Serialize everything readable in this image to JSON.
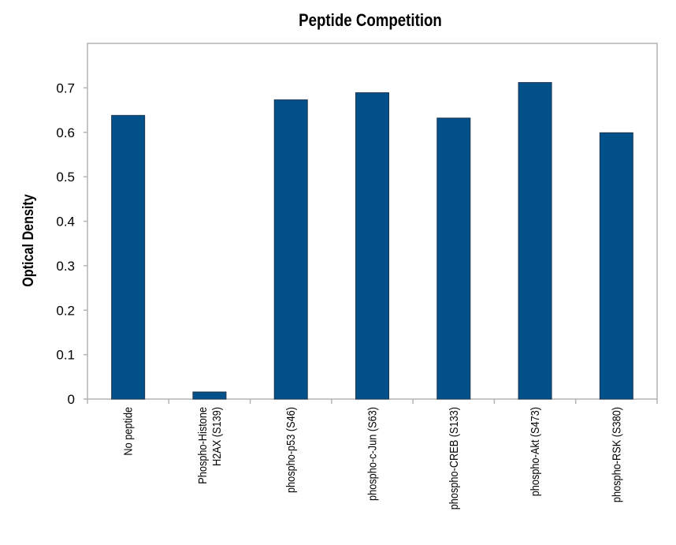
{
  "chart_data": {
    "type": "bar",
    "title": "Peptide Competition",
    "xlabel": "",
    "ylabel": "Optical Density",
    "ylim": [
      0,
      0.8
    ],
    "yticks": [
      "0",
      "0.1",
      "0.2",
      "0.3",
      "0.4",
      "0.5",
      "0.6",
      "0.7"
    ],
    "ytick_values": [
      0,
      0.1,
      0.2,
      0.3,
      0.4,
      0.5,
      0.6,
      0.7
    ],
    "grid": false,
    "categories": [
      [
        "No peptide"
      ],
      [
        "Phospho-Histone",
        "H2AX (S139)"
      ],
      [
        "phospho-p53 (S46)"
      ],
      [
        "phospho-c-Jun (S63)"
      ],
      [
        "phospho-CREB (S133)"
      ],
      [
        "phospho-Akt (S473)"
      ],
      [
        "phospho-RSK (S380)"
      ]
    ],
    "values": [
      0.638,
      0.016,
      0.673,
      0.689,
      0.632,
      0.712,
      0.599
    ],
    "colors": {
      "bar": "#02518a",
      "bar_edge": "#1e3550",
      "axis": "#b4b4b4"
    }
  }
}
